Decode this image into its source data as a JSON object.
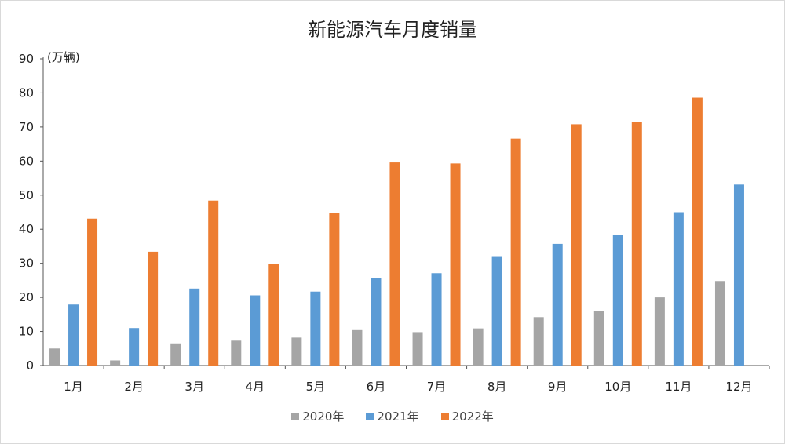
{
  "chart_data": {
    "type": "bar",
    "title": "新能源汽车月度销量",
    "unit": "(万辆)",
    "categories": [
      "1月",
      "2月",
      "3月",
      "4月",
      "5月",
      "6月",
      "7月",
      "8月",
      "9月",
      "10月",
      "11月",
      "12月"
    ],
    "ylim": [
      0,
      90
    ],
    "yticks": [
      0,
      10,
      20,
      30,
      40,
      50,
      60,
      70,
      80,
      90
    ],
    "grid": false,
    "legend_position": "bottom",
    "series": [
      {
        "name": "2020年",
        "color": "#a5a5a5",
        "values": [
          5,
          1.5,
          6.5,
          7.3,
          8.2,
          10.4,
          9.8,
          10.9,
          14.2,
          16.0,
          20.0,
          24.8
        ]
      },
      {
        "name": "2021年",
        "color": "#5b9bd5",
        "values": [
          17.9,
          11.0,
          22.6,
          20.6,
          21.7,
          25.6,
          27.1,
          32.1,
          35.7,
          38.3,
          45.0,
          53.1
        ]
      },
      {
        "name": "2022年",
        "color": "#ed7d31",
        "values": [
          43.1,
          33.4,
          48.4,
          29.9,
          44.7,
          59.6,
          59.3,
          66.6,
          70.8,
          71.4,
          78.6,
          null
        ]
      }
    ]
  }
}
